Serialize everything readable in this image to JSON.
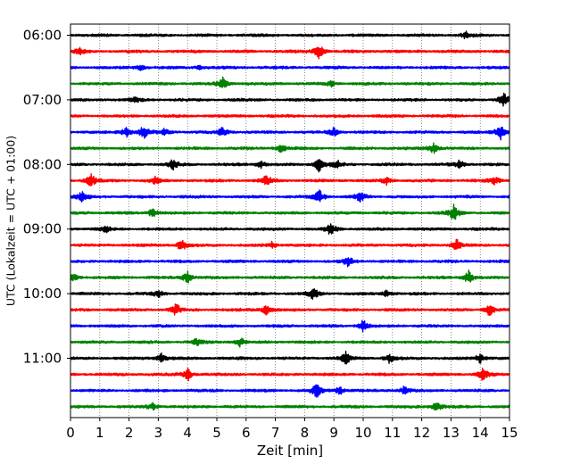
{
  "chart_data": {
    "type": "line",
    "title": "",
    "xlabel": "Zeit  [min]",
    "ylabel": "UTC (Lokalzeit = UTC + 01:00)",
    "xlim": [
      0,
      15
    ],
    "x_ticks": [
      "0",
      "1",
      "2",
      "3",
      "4",
      "5",
      "6",
      "7",
      "8",
      "9",
      "10",
      "11",
      "12",
      "13",
      "14",
      "15"
    ],
    "y_tick_labels": [
      "06:00",
      "07:00",
      "08:00",
      "09:00",
      "10:00",
      "11:00"
    ],
    "y_tick_rows": [
      0,
      4,
      8,
      12,
      16,
      20
    ],
    "grid_vertical": true,
    "series_colors": [
      "#000000",
      "#ff0000",
      "#0000ff",
      "#008000"
    ],
    "rows": [
      {
        "start": "06:00",
        "events": [
          [
            13.5,
            4
          ]
        ]
      },
      {
        "start": "06:15",
        "events": [
          [
            0.3,
            4
          ],
          [
            8.5,
            9
          ]
        ]
      },
      {
        "start": "06:30",
        "events": [
          [
            2.4,
            3
          ],
          [
            4.4,
            2
          ]
        ]
      },
      {
        "start": "06:45",
        "events": [
          [
            5.2,
            7
          ],
          [
            8.9,
            3
          ]
        ]
      },
      {
        "start": "07:00",
        "events": [
          [
            2.2,
            3
          ],
          [
            14.8,
            9
          ]
        ]
      },
      {
        "start": "07:15",
        "events": []
      },
      {
        "start": "07:30",
        "events": [
          [
            1.9,
            6
          ],
          [
            2.5,
            8
          ],
          [
            3.2,
            4
          ],
          [
            5.2,
            6
          ],
          [
            9.0,
            5
          ],
          [
            14.7,
            9
          ]
        ]
      },
      {
        "start": "07:45",
        "events": [
          [
            7.2,
            5
          ],
          [
            12.4,
            7
          ]
        ]
      },
      {
        "start": "08:00",
        "events": [
          [
            3.5,
            6
          ],
          [
            6.5,
            4
          ],
          [
            8.5,
            9
          ],
          [
            9.1,
            5
          ],
          [
            13.3,
            5
          ]
        ]
      },
      {
        "start": "08:15",
        "events": [
          [
            0.7,
            9
          ],
          [
            2.9,
            4
          ],
          [
            6.7,
            8
          ],
          [
            10.8,
            4
          ],
          [
            14.5,
            4
          ]
        ]
      },
      {
        "start": "08:30",
        "events": [
          [
            0.4,
            7
          ],
          [
            8.5,
            8
          ],
          [
            9.9,
            6
          ]
        ]
      },
      {
        "start": "08:45",
        "events": [
          [
            2.8,
            6
          ],
          [
            13.1,
            10
          ]
        ]
      },
      {
        "start": "09:00",
        "events": [
          [
            1.2,
            4
          ],
          [
            8.9,
            8
          ]
        ]
      },
      {
        "start": "09:15",
        "events": [
          [
            3.8,
            7
          ],
          [
            6.9,
            4
          ],
          [
            13.2,
            7
          ]
        ]
      },
      {
        "start": "09:30",
        "events": [
          [
            9.5,
            7
          ]
        ]
      },
      {
        "start": "09:45",
        "events": [
          [
            0.1,
            5
          ],
          [
            4.0,
            7
          ],
          [
            13.6,
            8
          ]
        ]
      },
      {
        "start": "10:00",
        "events": [
          [
            3.0,
            4
          ],
          [
            8.3,
            7
          ],
          [
            10.8,
            4
          ]
        ]
      },
      {
        "start": "10:15",
        "events": [
          [
            3.6,
            7
          ],
          [
            6.7,
            6
          ],
          [
            14.3,
            8
          ]
        ]
      },
      {
        "start": "10:30",
        "events": [
          [
            10.0,
            7
          ]
        ]
      },
      {
        "start": "10:45",
        "events": [
          [
            4.3,
            4
          ],
          [
            5.8,
            5
          ]
        ]
      },
      {
        "start": "11:00",
        "events": [
          [
            3.1,
            6
          ],
          [
            9.4,
            7
          ],
          [
            10.9,
            5
          ],
          [
            14.0,
            6
          ]
        ]
      },
      {
        "start": "11:15",
        "events": [
          [
            4.0,
            8
          ],
          [
            14.1,
            8
          ]
        ]
      },
      {
        "start": "11:30",
        "events": [
          [
            8.4,
            9
          ],
          [
            9.2,
            5
          ],
          [
            11.4,
            5
          ]
        ]
      },
      {
        "start": "11:45",
        "events": [
          [
            2.8,
            4
          ],
          [
            12.5,
            6
          ]
        ]
      }
    ]
  }
}
